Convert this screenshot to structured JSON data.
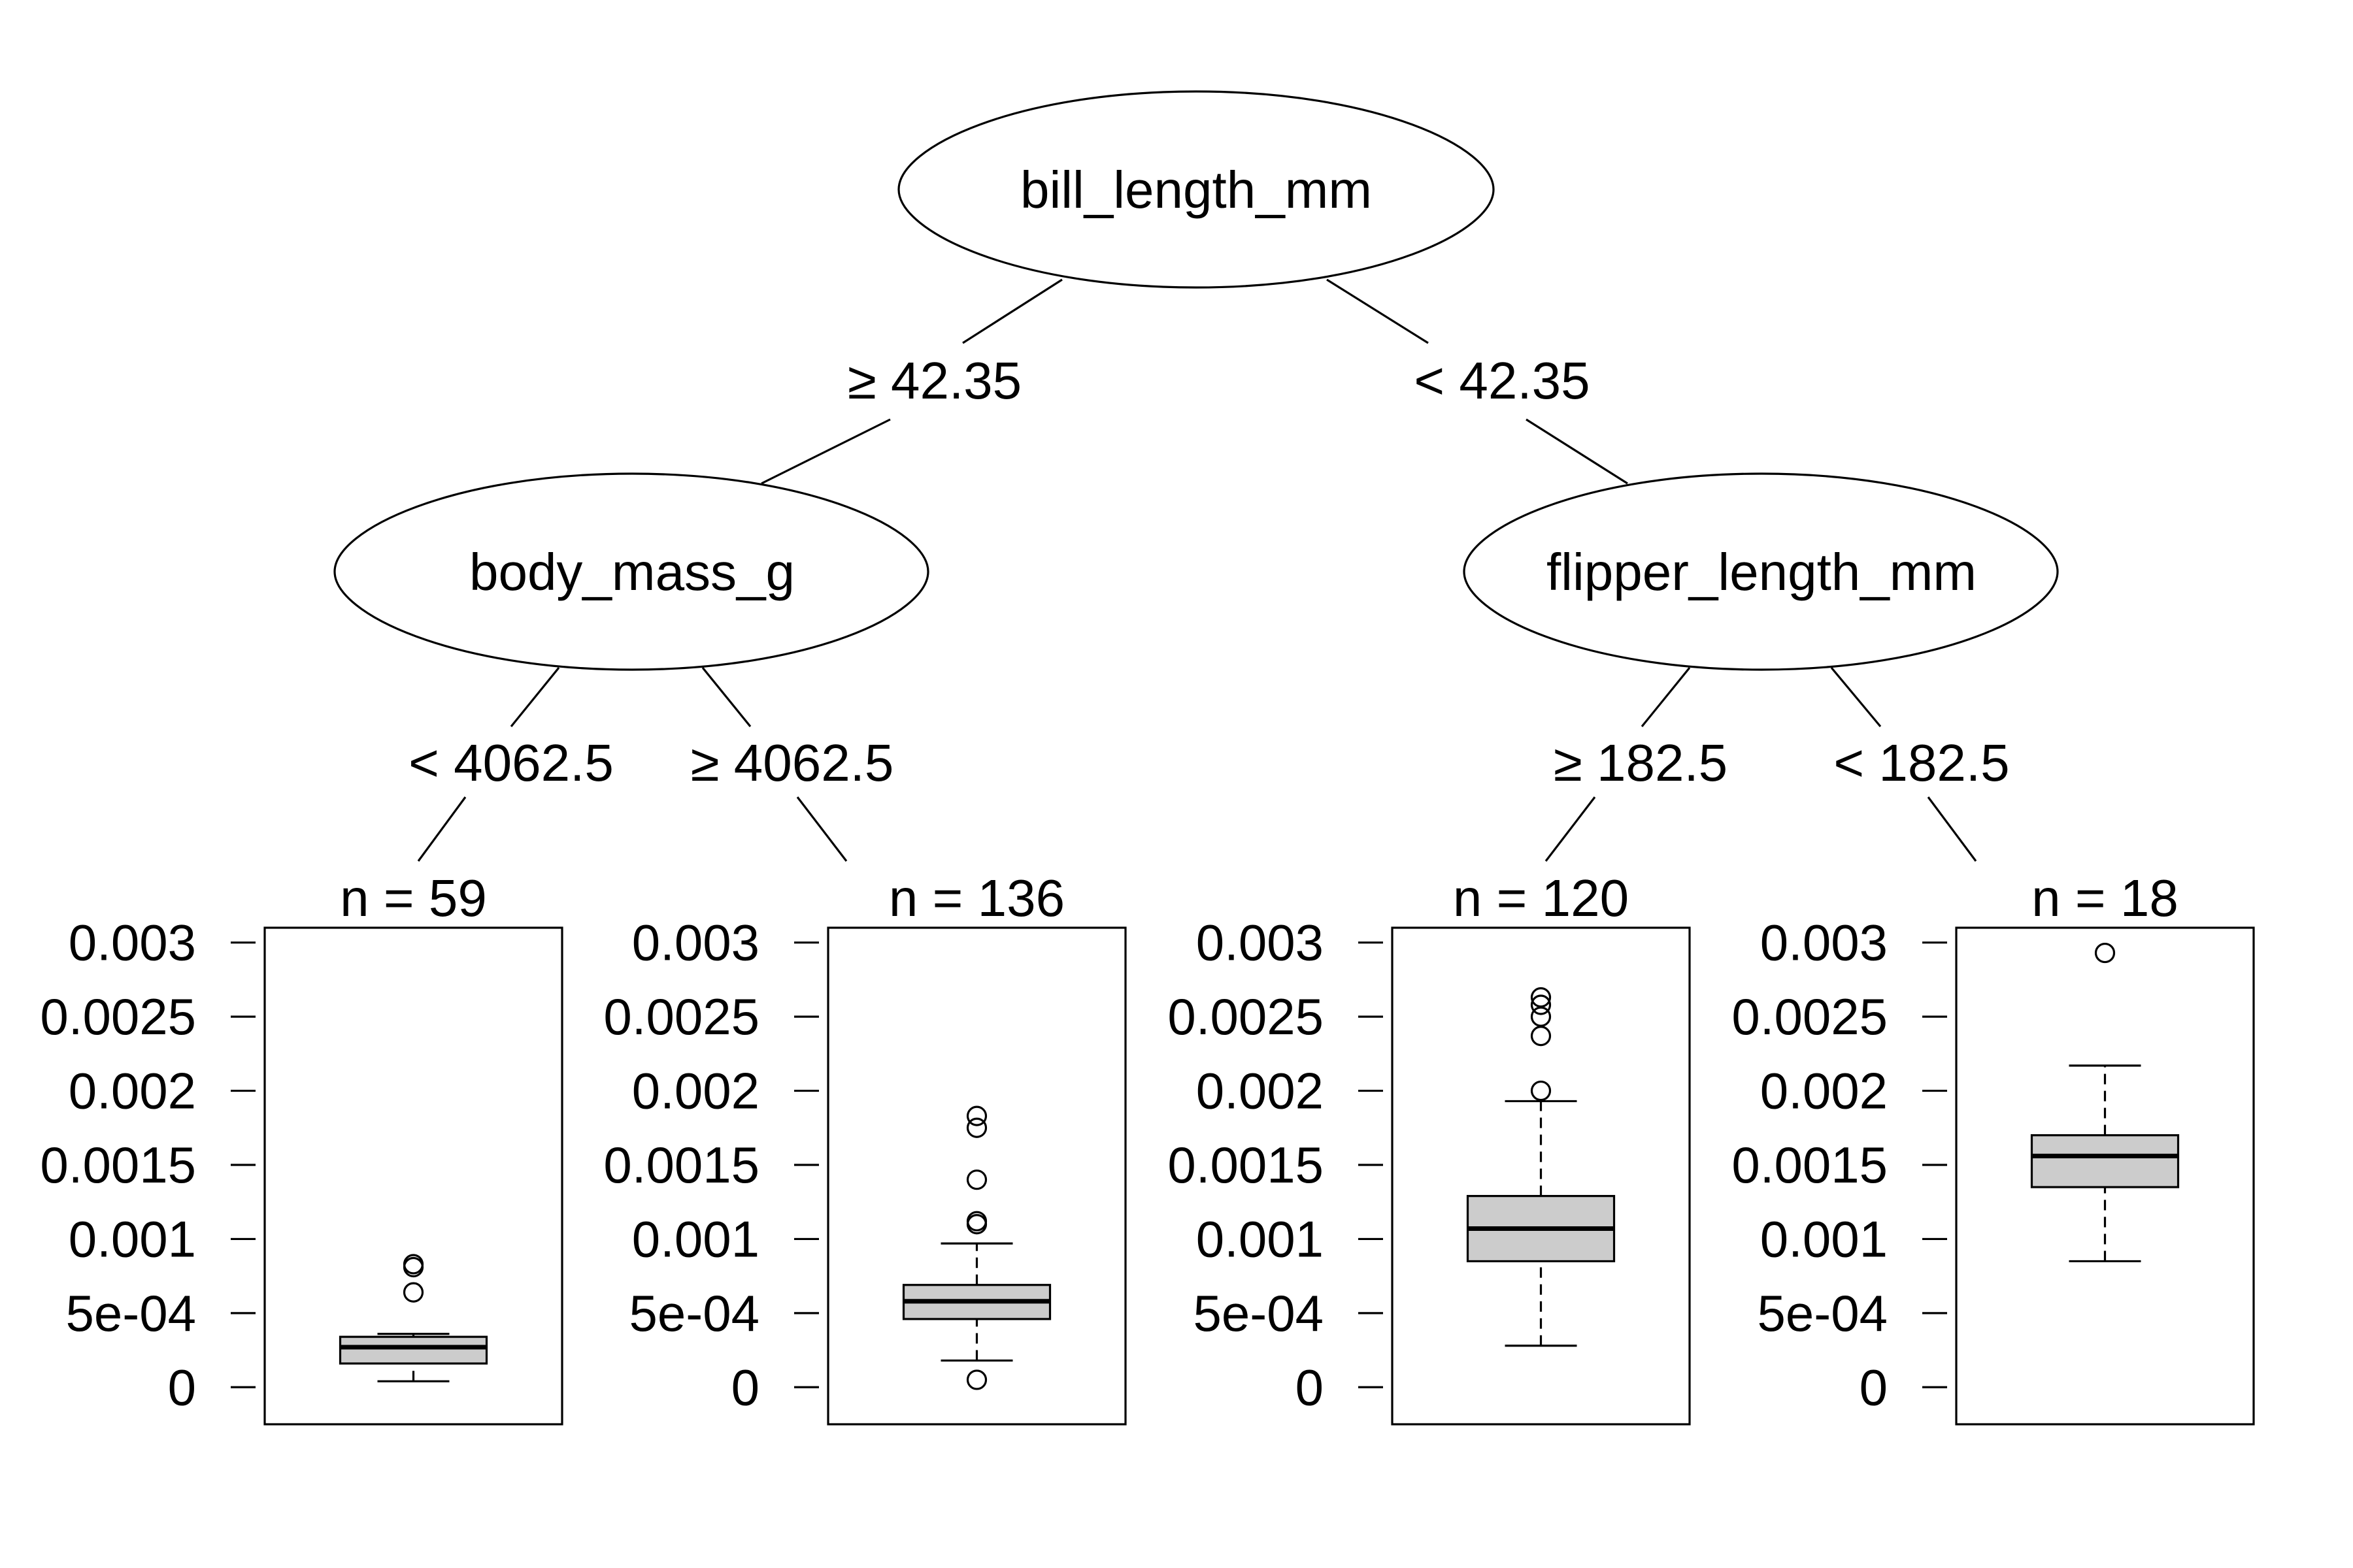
{
  "tree": {
    "root": {
      "label": "bill_length_mm",
      "left_edge": "≥ 42.35",
      "right_edge": "< 42.35"
    },
    "left": {
      "label": "body_mass_g",
      "left_edge": "< 4062.5",
      "right_edge": "≥ 4062.5"
    },
    "right": {
      "label": "flipper_length_mm",
      "left_edge": "≥ 182.5",
      "right_edge": "< 182.5"
    }
  },
  "leaf_axis": {
    "ylim": [
      -0.00025,
      0.0031
    ],
    "ticks": [
      {
        "value": 0,
        "label": "0"
      },
      {
        "value": 0.0005,
        "label": "5e-04"
      },
      {
        "value": 0.001,
        "label": "0.001"
      },
      {
        "value": 0.0015,
        "label": "0.0015"
      },
      {
        "value": 0.002,
        "label": "0.002"
      },
      {
        "value": 0.0025,
        "label": "0.0025"
      },
      {
        "value": 0.003,
        "label": "0.003"
      }
    ]
  },
  "leaves": [
    {
      "n_label": "n = 59",
      "box": {
        "whisker_low": 4e-05,
        "q1": 0.00016,
        "median": 0.00027,
        "q3": 0.00034,
        "whisker_high": 0.00036,
        "outliers": [
          0.00083,
          0.00081,
          0.00064
        ]
      }
    },
    {
      "n_label": "n = 136",
      "box": {
        "whisker_low": 0.00018,
        "q1": 0.00046,
        "median": 0.00058,
        "q3": 0.00069,
        "whisker_high": 0.00097,
        "outliers": [
          5e-05,
          0.0011,
          0.00112,
          0.0014,
          0.00175,
          0.00183
        ]
      }
    },
    {
      "n_label": "n = 120",
      "box": {
        "whisker_low": 0.00028,
        "q1": 0.00085,
        "median": 0.00107,
        "q3": 0.00129,
        "whisker_high": 0.00193,
        "outliers": [
          0.002,
          0.00237,
          0.0025,
          0.00258,
          0.00263
        ]
      }
    },
    {
      "n_label": "n = 18",
      "box": {
        "whisker_low": 0.00085,
        "q1": 0.00135,
        "median": 0.00156,
        "q3": 0.0017,
        "whisker_high": 0.00217,
        "outliers": [
          0.00293
        ]
      }
    }
  ],
  "colors": {
    "box_fill": "#cccccc",
    "line": "#000000",
    "background": "#ffffff"
  }
}
